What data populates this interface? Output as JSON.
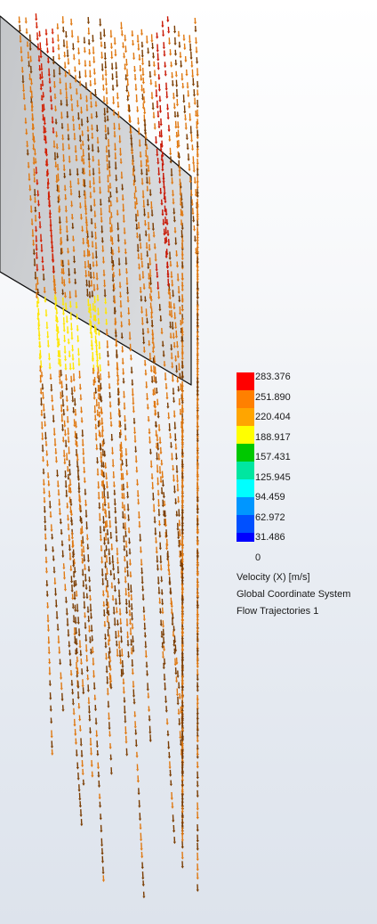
{
  "legend": {
    "quantity": "Velocity (X) [m/s]",
    "coordinate_system": "Global Coordinate System",
    "trajectory_set": "Flow Trajectories 1",
    "ticks": [
      "283.376",
      "251.890",
      "220.404",
      "188.917",
      "157.431",
      "125.945",
      "94.459",
      "62.972",
      "31.486",
      "0"
    ],
    "band_colors": [
      "#ff0000",
      "#ff8000",
      "#ffa500",
      "#ffff00",
      "#00c800",
      "#00e6a0",
      "#00ffff",
      "#0096ff",
      "#0050ff",
      "#0000ff"
    ],
    "min": 0,
    "max": 283.376
  },
  "colors": {
    "body_face": "#cdcfd2",
    "body_edge": "#202020",
    "slow_vector": "#7a3c00",
    "mid_vector": "#e07810",
    "fast_vector": "#ffe600"
  }
}
